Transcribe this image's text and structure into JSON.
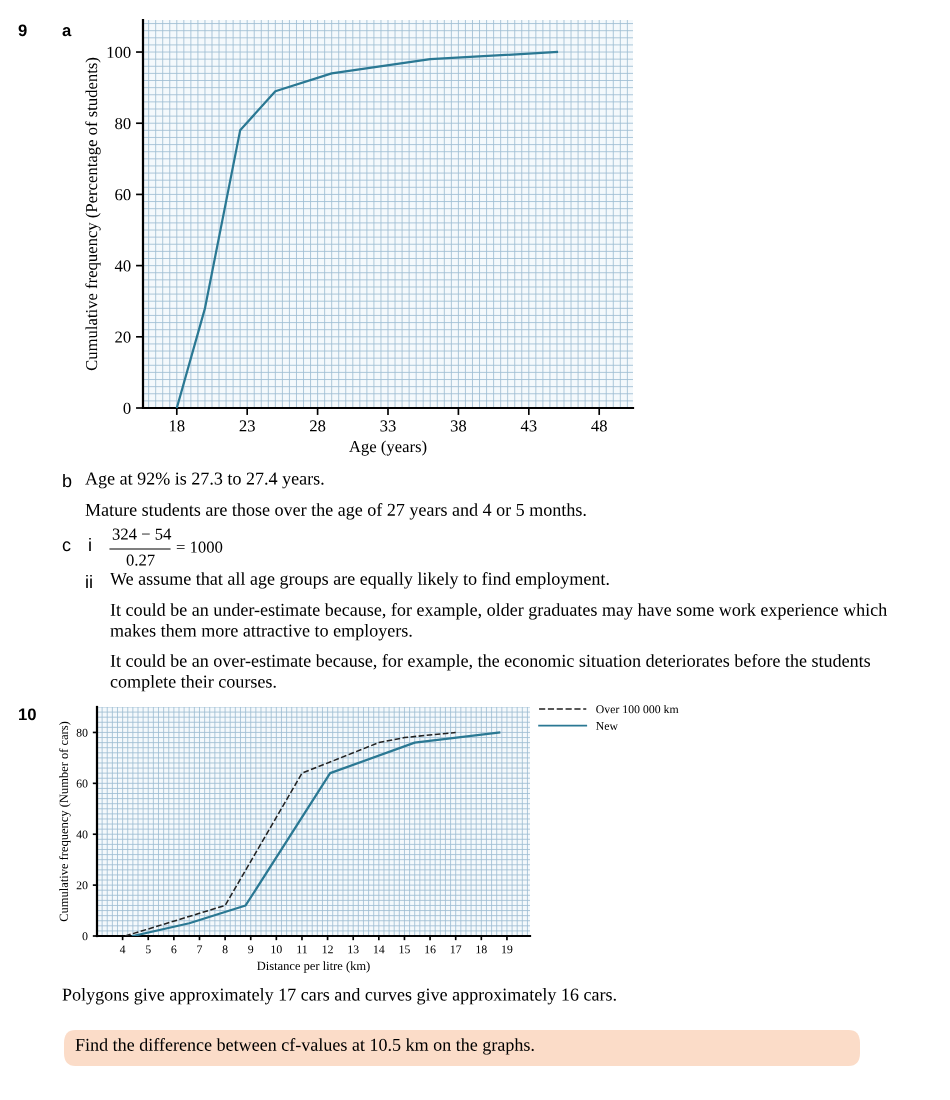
{
  "chart_data": [
    {
      "type": "line",
      "xlabel": "Age (years)",
      "ylabel": "Cumulative frequency (Percentage of students)",
      "grid": true,
      "legend": false,
      "marker": "none",
      "line_style": "solid",
      "series": [
        {
          "color": "#2a7893",
          "x": [
            18,
            20,
            22.5,
            25,
            29,
            36,
            45
          ],
          "values": [
            0,
            28,
            78,
            89,
            94,
            98,
            100
          ]
        }
      ],
      "xlim": [
        15.6,
        50.4
      ],
      "xticks": [
        18,
        23,
        28,
        33,
        38,
        43,
        48
      ],
      "ylim": [
        0,
        109
      ],
      "yticks": [
        0,
        20,
        40,
        60,
        80,
        100
      ],
      "annotations": [
        "9",
        "a",
        "b",
        "Age at 92% is 27.3 to 27.4 years.",
        "Mature students are those over the age of 27 years and 4 or 5 months.",
        "c",
        "i",
        "324 − 54",
        "0.27",
        "= 1000",
        "ii",
        "We assume that all age groups are equally likely to find employment.",
        "It could be an under-estimate because, for example, older graduates may have some work experience which",
        "makes them more attractive to employers.",
        "It could be an over-estimate because, for example, the economic situation deteriorates before the students",
        "complete their courses."
      ]
    },
    {
      "type": "line",
      "xlabel": "Distance per litre (km)",
      "ylabel": "Cumulative frequency (Number of cars)",
      "grid": true,
      "legend": "right",
      "marker": "none",
      "series": [
        {
          "name": "Over 100 000 km",
          "color": "#222222",
          "line_style": "dashed",
          "x": [
            4.1,
            8,
            11,
            14,
            15,
            17
          ],
          "values": [
            0,
            12,
            64,
            76,
            78,
            80
          ]
        },
        {
          "name": "New",
          "color": "#2a7893",
          "line_style": "solid",
          "x": [
            4.4,
            6.6,
            8.8,
            12.1,
            15.4,
            18.7
          ],
          "values": [
            0,
            5,
            12,
            64,
            76,
            80
          ]
        }
      ],
      "xlim": [
        3,
        19.9
      ],
      "xticks": [
        4,
        5,
        6,
        7,
        8,
        9,
        10,
        11,
        12,
        13,
        14,
        15,
        16,
        17,
        18,
        19
      ],
      "ylim": [
        0,
        90
      ],
      "yticks": [
        0,
        20,
        40,
        60,
        80
      ],
      "annotations": [
        "10",
        "Polygons give approximately 17 cars and curves give approximately 16 cars.",
        "Find the difference between cf-values at 10.5 km on the graphs."
      ]
    }
  ]
}
